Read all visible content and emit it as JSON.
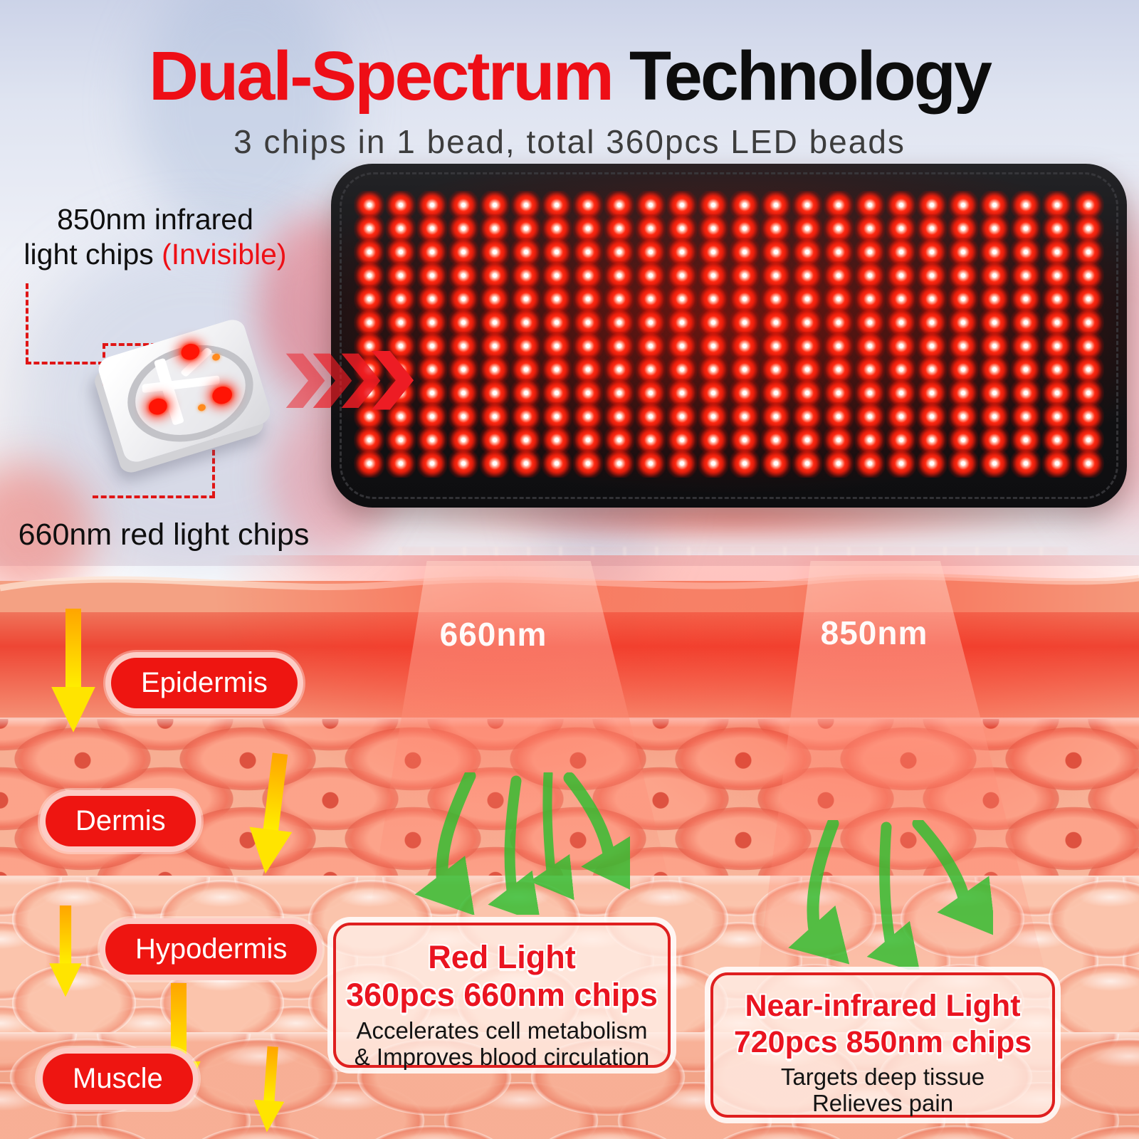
{
  "header": {
    "title_red": "Dual-Spectrum",
    "title_black": " Technology",
    "subtitle": "3 chips in 1 bead, total 360pcs LED beads"
  },
  "chip_callouts": {
    "infrared_line1": "850nm infrared",
    "infrared_line2": "light chips ",
    "infrared_invisible": "(Invisible)",
    "red_chips_label": "660nm red light chips"
  },
  "led_pad": {
    "rows": 12,
    "cols": 24
  },
  "beams": [
    {
      "label": "660nm"
    },
    {
      "label": "850nm"
    }
  ],
  "skin_layers": [
    {
      "label": "Epidermis"
    },
    {
      "label": "Dermis"
    },
    {
      "label": "Hypodermis"
    },
    {
      "label": "Muscle"
    }
  ],
  "info_boxes": {
    "red_light": {
      "title_line1": "Red Light",
      "title_line2": "360pcs 660nm chips",
      "body_line1": "Accelerates cell metabolism",
      "body_line2": "& Improves blood circulation"
    },
    "nir_light": {
      "title_line1": "Near-infrared Light",
      "title_line2": "720pcs 850nm chips",
      "body_line1": "Targets deep tissue",
      "body_line2": "Relieves pain"
    }
  },
  "icons": {
    "chevron_right": "❯"
  },
  "colors": {
    "accent_red": "#ee0e16",
    "badge_red": "#ee1511",
    "led_red": "#ff2a12",
    "arrow_yellow": "#ffe000",
    "arrow_green": "#3dbb3d"
  }
}
